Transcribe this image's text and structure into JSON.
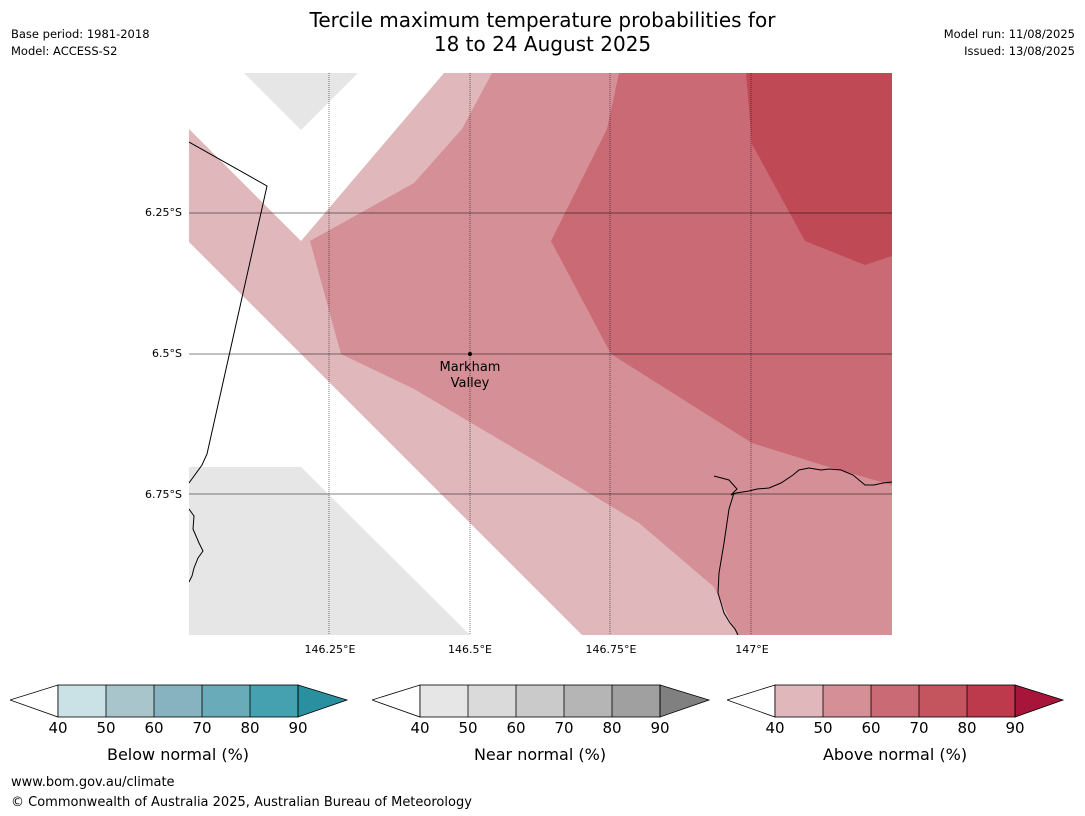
{
  "title_line1": "Tercile maximum temperature probabilities for",
  "title_line2": "18 to 24 August 2025",
  "meta_left": [
    "Base period: 1981-2018",
    "Model: ACCESS-S2"
  ],
  "meta_right": [
    "Model run: 11/08/2025",
    "Issued: 13/08/2025"
  ],
  "lat_labels": [
    "6.25°S",
    "6.5°S",
    "6.75°S"
  ],
  "lon_labels": [
    "146.25°E",
    "146.5°E",
    "146.75°E",
    "147°E"
  ],
  "place": {
    "name_line1": "Markham",
    "name_line2": "Valley"
  },
  "colors": {
    "below": [
      "#cae1e6",
      "#a7c5cb",
      "#87b3c1",
      "#6aabba",
      "#45a0af",
      "#2a8f9f"
    ],
    "near": [
      "#e6e6e6",
      "#dadada",
      "#cacaca",
      "#b5b5b5",
      "#a0a0a0",
      "#808080"
    ],
    "above": [
      "#e0b8bc",
      "#d58f96",
      "#c96a74",
      "#c4555f",
      "#bc3a4c",
      "#a8153a"
    ]
  },
  "colorbars": [
    {
      "title": "Below normal (%)",
      "ticks": [
        "40",
        "50",
        "60",
        "70",
        "80",
        "90"
      ]
    },
    {
      "title": "Near normal (%)",
      "ticks": [
        "40",
        "50",
        "60",
        "70",
        "80",
        "90"
      ]
    },
    {
      "title": "Above normal (%)",
      "ticks": [
        "40",
        "50",
        "60",
        "70",
        "80",
        "90"
      ]
    }
  ],
  "footer": {
    "url": "www.bom.gov.au/climate",
    "copyright": "© Commonwealth of Australia 2025, Australian Bureau of Meteorology"
  }
}
